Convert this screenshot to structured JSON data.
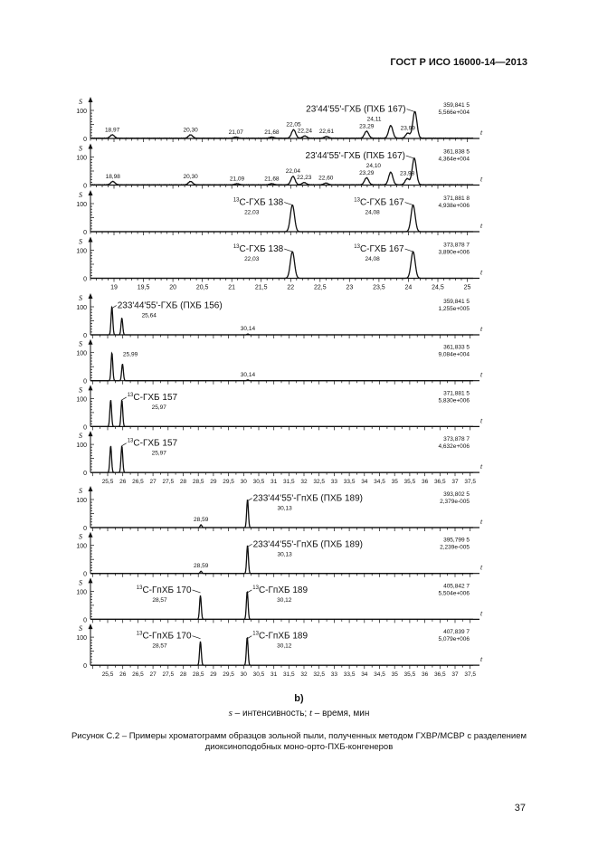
{
  "header": {
    "standard": "ГОСТ Р ИСО 16000-14—2013"
  },
  "figure": {
    "sublabel": "b)",
    "legend_s": "s",
    "legend_s_text": " – интенсивность; ",
    "legend_t": "t",
    "legend_t_text": " – время, мин",
    "caption": "Рисунок С.2 – Примеры хроматограмм образцов зольной пыли, полученных методом ГХВР/МСВР с разделением диоксиноподобных моно-орто-ПХБ-конгенеров"
  },
  "page_number": "37",
  "chart_data": [
    {
      "type": "line",
      "xlabel": "t",
      "ylabel": "S",
      "xlim": [
        18.6,
        25.1
      ],
      "ylim": [
        0,
        100
      ],
      "xticks": [
        "19",
        "19,5",
        "20",
        "20,5",
        "21",
        "21,5",
        "22",
        "22,5",
        "23",
        "23,5",
        "24",
        "24,5",
        "25"
      ],
      "xtick_values": [
        19,
        19.5,
        20,
        20.5,
        21,
        21.5,
        22,
        22.5,
        23,
        23.5,
        24,
        24.5,
        25
      ],
      "yticks": [
        "0",
        "100"
      ],
      "panels": [
        {
          "peaks": [
            [
              18.97,
              12
            ],
            [
              20.3,
              12
            ],
            [
              21.07,
              4
            ],
            [
              21.68,
              4
            ],
            [
              22.05,
              30
            ],
            [
              22.24,
              8
            ],
            [
              22.61,
              6
            ],
            [
              23.29,
              25
            ],
            [
              23.7,
              45
            ],
            [
              23.99,
              18
            ],
            [
              24.11,
              95
            ]
          ],
          "rt_labels": [
            [
              "18,97",
              18.97,
              12
            ],
            [
              "20,30",
              20.3,
              12
            ],
            [
              "21,07",
              21.07,
              4
            ],
            [
              "21,68",
              21.68,
              4
            ],
            [
              "22,05",
              22.05,
              30
            ],
            [
              "22,24",
              22.24,
              8
            ],
            [
              "22,61",
              22.61,
              6
            ],
            [
              "23,29",
              23.29,
              25
            ],
            [
              "23,99",
              23.99,
              18
            ]
          ],
          "compounds": [
            {
              "name": "23'44'55'-ГХБ (ПХБ 167)",
              "rt": "24,11",
              "x": 24.11
            }
          ],
          "mass": "359,841 5",
          "intensity": "5,566e+004"
        },
        {
          "peaks": [
            [
              18.98,
              12
            ],
            [
              20.3,
              12
            ],
            [
              21.09,
              4
            ],
            [
              21.68,
              4
            ],
            [
              22.04,
              30
            ],
            [
              22.23,
              8
            ],
            [
              22.6,
              6
            ],
            [
              23.29,
              25
            ],
            [
              23.7,
              45
            ],
            [
              23.98,
              22
            ],
            [
              24.1,
              95
            ]
          ],
          "rt_labels": [
            [
              "18,98",
              18.98,
              12
            ],
            [
              "20,30",
              20.3,
              12
            ],
            [
              "21,09",
              21.09,
              4
            ],
            [
              "21,68",
              21.68,
              4
            ],
            [
              "22,04",
              22.04,
              30
            ],
            [
              "22,23",
              22.23,
              8
            ],
            [
              "22,60",
              22.6,
              6
            ],
            [
              "23,29",
              23.29,
              25
            ],
            [
              "23,98",
              23.98,
              22
            ]
          ],
          "compounds": [
            {
              "name": "23'44'55'-ГХБ (ПХБ 167)",
              "rt": "24,10",
              "x": 24.1
            }
          ],
          "mass": "361,838 5",
          "intensity": "4,364e+004"
        },
        {
          "peaks": [
            [
              22.03,
              95
            ],
            [
              24.08,
              95
            ]
          ],
          "rt_labels": [],
          "compounds": [
            {
              "sup": "13",
              "name": "С-ГХБ 138",
              "rt": "22,03",
              "x": 22.03
            },
            {
              "sup": "13",
              "name": "С-ГХБ 167",
              "rt": "24,08",
              "x": 24.08
            }
          ],
          "mass": "371,881 8",
          "intensity": "4,938e+006"
        },
        {
          "peaks": [
            [
              22.03,
              95
            ],
            [
              24.08,
              95
            ]
          ],
          "rt_labels": [],
          "compounds": [
            {
              "sup": "13",
              "name": "С-ГХБ 138",
              "rt": "22,03",
              "x": 22.03
            },
            {
              "sup": "13",
              "name": "С-ГХБ 167",
              "rt": "24,08",
              "x": 24.08
            }
          ],
          "mass": "373,878 7",
          "intensity": "3,890e+006"
        }
      ]
    },
    {
      "type": "line",
      "xlabel": "t",
      "ylabel": "S",
      "xlim": [
        24.93,
        37.6
      ],
      "ylim": [
        0,
        100
      ],
      "xticks": [
        "25,5",
        "26",
        "26,5",
        "27",
        "27,5",
        "28",
        "28,5",
        "29",
        "29,5",
        "30",
        "30,5",
        "31",
        "31,5",
        "32",
        "32,5",
        "33",
        "33,5",
        "34",
        "34,5",
        "35",
        "35,5",
        "36",
        "36,5",
        "37",
        "37,5"
      ],
      "xtick_values": [
        25.5,
        26,
        26.5,
        27,
        27.5,
        28,
        28.5,
        29,
        29.5,
        30,
        30.5,
        31,
        31.5,
        32,
        32.5,
        33,
        33.5,
        34,
        34.5,
        35,
        35.5,
        36,
        36.5,
        37,
        37.5
      ],
      "yticks": [
        "0",
        "100"
      ],
      "panels": [
        {
          "peaks": [
            [
              25.64,
              100
            ],
            [
              25.97,
              60
            ],
            [
              30.14,
              3
            ]
          ],
          "rt_labels": [
            [
              "30,14",
              30.14,
              3
            ]
          ],
          "compounds": [
            {
              "name": "233'44'55'-ГХБ (ПХБ 156)",
              "rt": "25,64",
              "x": 25.64,
              "right": true
            }
          ],
          "mass": "359,841 5",
          "intensity": "1,255e+005"
        },
        {
          "peaks": [
            [
              25.64,
              100
            ],
            [
              25.99,
              60
            ],
            [
              30.14,
              3
            ]
          ],
          "rt_labels": [
            [
              "25,99",
              26.25,
              75
            ],
            [
              "30,14",
              30.14,
              3
            ]
          ],
          "compounds": [],
          "mass": "361,833 5",
          "intensity": "9,084e+004"
        },
        {
          "peaks": [
            [
              25.6,
              95
            ],
            [
              25.97,
              95
            ]
          ],
          "rt_labels": [],
          "compounds": [
            {
              "sup": "13",
              "name": "С-ГХБ 157",
              "rt": "25,97",
              "x": 25.97,
              "right": true
            }
          ],
          "mass": "371,881 5",
          "intensity": "5,830e+006"
        },
        {
          "peaks": [
            [
              25.6,
              95
            ],
            [
              25.97,
              95
            ]
          ],
          "rt_labels": [],
          "compounds": [
            {
              "sup": "13",
              "name": "С-ГХБ 157",
              "rt": "25,97",
              "x": 25.97,
              "right": true
            }
          ],
          "mass": "373,878 7",
          "intensity": "4,632e+006"
        }
      ]
    },
    {
      "type": "line",
      "xlabel": "t",
      "ylabel": "S",
      "xlim": [
        24.93,
        37.6
      ],
      "ylim": [
        0,
        100
      ],
      "xticks": [
        "25,5",
        "26",
        "26,5",
        "27",
        "27,5",
        "28",
        "28,5",
        "29",
        "29,5",
        "30",
        "30,5",
        "31",
        "31,5",
        "32",
        "32,5",
        "33",
        "33,5",
        "34",
        "34,5",
        "35",
        "35,5",
        "36",
        "36,5",
        "37",
        "37,5"
      ],
      "xtick_values": [
        25.5,
        26,
        26.5,
        27,
        27.5,
        28,
        28.5,
        29,
        29.5,
        30,
        30.5,
        31,
        31.5,
        32,
        32.5,
        33,
        33.5,
        34,
        34.5,
        35,
        35.5,
        36,
        36.5,
        37,
        37.5
      ],
      "yticks": [
        "0",
        "100"
      ],
      "panels": [
        {
          "peaks": [
            [
              28.59,
              10
            ],
            [
              30.13,
              100
            ]
          ],
          "rt_labels": [
            [
              "28,59",
              28.59,
              10
            ]
          ],
          "compounds": [
            {
              "name": "233'44'55'-ГпХБ (ПХБ 189)",
              "rt": "30,13",
              "x": 30.13,
              "right": true
            }
          ],
          "mass": "393,802 5",
          "intensity": "2,379e-005"
        },
        {
          "peaks": [
            [
              28.59,
              8
            ],
            [
              30.13,
              100
            ]
          ],
          "rt_labels": [
            [
              "28,59",
              28.59,
              8
            ]
          ],
          "compounds": [
            {
              "name": "233'44'55'-ГпХБ (ПХБ 189)",
              "rt": "30,13",
              "x": 30.13,
              "right": true
            }
          ],
          "mass": "395,799 5",
          "intensity": "2,239e-005"
        },
        {
          "peaks": [
            [
              28.57,
              85
            ],
            [
              30.12,
              100
            ]
          ],
          "rt_labels": [],
          "compounds": [
            {
              "sup": "13",
              "name": "С-ГпХБ 170",
              "rt": "28,57",
              "x": 28.57
            },
            {
              "sup": "13",
              "name": "С-ГпХБ 189",
              "rt": "30,12",
              "x": 30.12,
              "right": true
            }
          ],
          "mass": "405,842 7",
          "intensity": "5,504e+006"
        },
        {
          "peaks": [
            [
              28.57,
              85
            ],
            [
              30.12,
              100
            ]
          ],
          "rt_labels": [],
          "compounds": [
            {
              "sup": "13",
              "name": "С-ГпХБ 170",
              "rt": "28,57",
              "x": 28.57
            },
            {
              "sup": "13",
              "name": "С-ГпХБ 189",
              "rt": "30,12",
              "x": 30.12,
              "right": true
            }
          ],
          "mass": "407,839 7",
          "intensity": "5,079e+006"
        }
      ]
    }
  ]
}
